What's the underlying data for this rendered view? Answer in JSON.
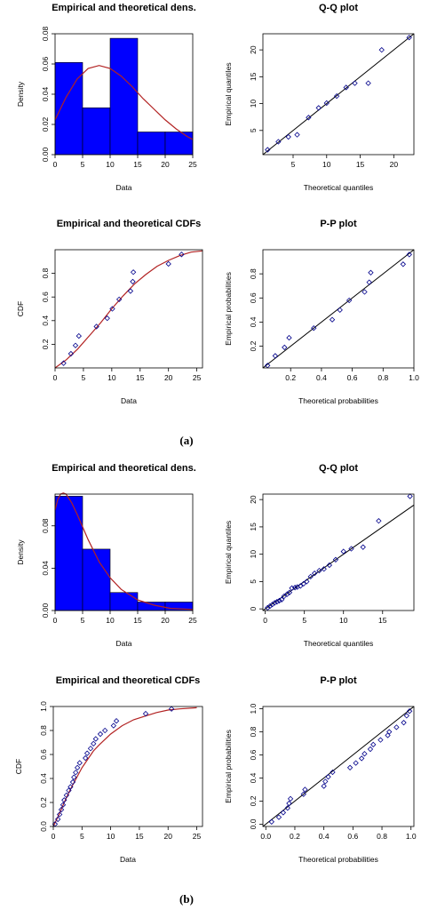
{
  "panel_labels": [
    "(a)",
    "(b)"
  ],
  "chart_data": [
    {
      "panel": "(a)",
      "type": "bar",
      "title": "Empirical and theoretical dens.",
      "xlabel": "Data",
      "ylabel": "Density",
      "xlim": [
        0,
        25
      ],
      "ylim": [
        0,
        0.08
      ],
      "xticks": [
        "0",
        "5",
        "10",
        "15",
        "20",
        "25"
      ],
      "yticks": [
        "0.00",
        "0.02",
        "0.04",
        "0.06",
        "0.08"
      ],
      "bins": [
        [
          0,
          5
        ],
        [
          5,
          10
        ],
        [
          10,
          15
        ],
        [
          15,
          20
        ],
        [
          20,
          25
        ]
      ],
      "values": [
        0.061,
        0.031,
        0.077,
        0.015,
        0.015
      ],
      "bar_color": "#0000ff",
      "curve_color": "#b22222",
      "curve": {
        "x": [
          0,
          2,
          4,
          6,
          8,
          10,
          12,
          14,
          16,
          18,
          20,
          22,
          24,
          25
        ],
        "y": [
          0.023,
          0.038,
          0.05,
          0.057,
          0.059,
          0.057,
          0.052,
          0.045,
          0.037,
          0.03,
          0.023,
          0.017,
          0.012,
          0.01
        ]
      }
    },
    {
      "panel": "(a)",
      "type": "scatter",
      "title": "Q-Q plot",
      "xlabel": "Theoretical quantiles",
      "ylabel": "Empirical quantiles",
      "xlim": [
        0.5,
        23
      ],
      "ylim": [
        0.5,
        23
      ],
      "xticks": [
        "5",
        "10",
        "15",
        "20"
      ],
      "yticks": [
        "5",
        "10",
        "15",
        "20"
      ],
      "x": [
        1.2,
        2.8,
        4.3,
        5.6,
        7.3,
        8.8,
        10.0,
        11.5,
        12.9,
        14.2,
        16.2,
        18.2,
        22.3
      ],
      "y": [
        1.4,
        2.9,
        3.8,
        4.2,
        7.4,
        9.2,
        10.1,
        11.4,
        13.0,
        13.8,
        13.8,
        20.0,
        22.3
      ],
      "line": [
        [
          0.5,
          0.5
        ],
        [
          23,
          23
        ]
      ],
      "point_color": "#00008b"
    },
    {
      "panel": "(a)",
      "type": "scatter",
      "title": "Empirical and theoretical CDFs",
      "xlabel": "Data",
      "ylabel": "CDF",
      "xlim": [
        0,
        26
      ],
      "ylim": [
        0,
        1
      ],
      "xticks": [
        "0",
        "5",
        "10",
        "15",
        "20",
        "25"
      ],
      "yticks": [
        "0.2",
        "0.4",
        "0.6",
        "0.8"
      ],
      "x": [
        1.5,
        2.8,
        3.6,
        4.2,
        7.3,
        9.2,
        10.1,
        11.3,
        13.3,
        13.7,
        13.8,
        20.0,
        22.3
      ],
      "y": [
        0.04,
        0.12,
        0.19,
        0.27,
        0.35,
        0.42,
        0.5,
        0.58,
        0.65,
        0.73,
        0.81,
        0.88,
        0.96
      ],
      "curve": {
        "x": [
          0,
          2,
          4,
          6,
          8,
          10,
          12,
          14,
          16,
          18,
          20,
          22,
          24,
          26
        ],
        "y": [
          0.0,
          0.07,
          0.16,
          0.27,
          0.38,
          0.5,
          0.61,
          0.71,
          0.79,
          0.86,
          0.91,
          0.95,
          0.98,
          0.99
        ]
      },
      "curve_color": "#b22222",
      "point_color": "#00008b"
    },
    {
      "panel": "(a)",
      "type": "scatter",
      "title": "P-P plot",
      "xlabel": "Theoretical probabilities",
      "ylabel": "Empirical probabilities",
      "xlim": [
        0.02,
        1
      ],
      "ylim": [
        0.02,
        1
      ],
      "xticks": [
        "0.2",
        "0.4",
        "0.6",
        "0.8",
        "1.0"
      ],
      "yticks": [
        "0.2",
        "0.4",
        "0.6",
        "0.8"
      ],
      "x": [
        0.05,
        0.1,
        0.16,
        0.19,
        0.35,
        0.47,
        0.52,
        0.58,
        0.68,
        0.71,
        0.72,
        0.93,
        0.97
      ],
      "y": [
        0.04,
        0.12,
        0.19,
        0.27,
        0.35,
        0.42,
        0.5,
        0.58,
        0.65,
        0.73,
        0.81,
        0.88,
        0.96
      ],
      "line": [
        [
          0.02,
          0.02
        ],
        [
          1,
          1
        ]
      ],
      "point_color": "#00008b"
    },
    {
      "panel": "(b)",
      "type": "bar",
      "title": "Empirical and theoretical dens.",
      "xlabel": "Data",
      "ylabel": "Density",
      "xlim": [
        0,
        25
      ],
      "ylim": [
        0,
        0.11
      ],
      "xticks": [
        "0",
        "5",
        "10",
        "15",
        "20",
        "25"
      ],
      "yticks": [
        "0.00",
        "0.04",
        "0.08"
      ],
      "bins": [
        [
          0,
          5
        ],
        [
          5,
          10
        ],
        [
          10,
          15
        ],
        [
          15,
          20
        ],
        [
          20,
          25
        ]
      ],
      "values": [
        0.108,
        0.058,
        0.017,
        0.008,
        0.008
      ],
      "bar_color": "#0000ff",
      "curve_color": "#b22222",
      "curve": {
        "x": [
          0,
          0.5,
          1,
          1.5,
          2,
          3,
          4,
          5,
          6,
          8,
          10,
          12,
          15,
          18,
          21,
          25
        ],
        "y": [
          0.095,
          0.105,
          0.11,
          0.111,
          0.11,
          0.102,
          0.091,
          0.079,
          0.067,
          0.046,
          0.031,
          0.02,
          0.01,
          0.005,
          0.002,
          0.001
        ]
      }
    },
    {
      "panel": "(b)",
      "type": "scatter",
      "title": "Q-Q plot",
      "xlabel": "Theoretical quantiles",
      "ylabel": "Empirical quantiles",
      "xlim": [
        -0.3,
        19
      ],
      "ylim": [
        -0.3,
        21
      ],
      "xticks": [
        "0",
        "5",
        "10",
        "15"
      ],
      "yticks": [
        "0",
        "5",
        "10",
        "15",
        "20"
      ],
      "x": [
        0.3,
        0.6,
        0.9,
        1.2,
        1.5,
        1.8,
        2.1,
        2.4,
        2.8,
        3.1,
        3.4,
        3.8,
        4.1,
        4.5,
        4.9,
        5.3,
        5.8,
        6.3,
        6.9,
        7.5,
        8.2,
        9.0,
        10.0,
        11.0,
        12.5,
        14.5,
        18.5
      ],
      "y": [
        0.2,
        0.5,
        0.8,
        1.1,
        1.3,
        1.5,
        1.7,
        2.3,
        2.7,
        3.0,
        3.8,
        3.9,
        4.0,
        4.2,
        4.6,
        5.0,
        5.9,
        6.5,
        7.0,
        7.3,
        8.0,
        9.0,
        10.5,
        11.0,
        11.3,
        16.1,
        20.6
      ],
      "line": [
        [
          -0.3,
          -0.3
        ],
        [
          19,
          19
        ]
      ],
      "point_color": "#00008b"
    },
    {
      "panel": "(b)",
      "type": "scatter",
      "title": "Empirical and theoretical CDFs",
      "xlabel": "Data",
      "ylabel": "CDF",
      "xlim": [
        0,
        26
      ],
      "ylim": [
        0,
        1
      ],
      "xticks": [
        "0",
        "5",
        "10",
        "15",
        "20",
        "25"
      ],
      "yticks": [
        "0.0",
        "0.2",
        "0.4",
        "0.6",
        "0.8",
        "1.0"
      ],
      "x": [
        0.3,
        0.8,
        1.1,
        1.4,
        1.7,
        1.9,
        2.3,
        2.7,
        3.0,
        3.4,
        3.6,
        3.9,
        4.2,
        4.6,
        5.6,
        5.9,
        6.5,
        7.0,
        7.4,
        8.2,
        9.0,
        10.5,
        11.0,
        16.1,
        20.6
      ],
      "y": [
        0.02,
        0.06,
        0.1,
        0.14,
        0.18,
        0.22,
        0.26,
        0.3,
        0.33,
        0.37,
        0.41,
        0.45,
        0.49,
        0.53,
        0.57,
        0.61,
        0.65,
        0.69,
        0.73,
        0.77,
        0.8,
        0.84,
        0.88,
        0.94,
        0.98
      ],
      "curve": {
        "x": [
          0,
          1,
          2,
          3,
          4,
          5,
          6,
          7,
          8,
          10,
          12,
          14,
          16,
          18,
          20,
          22,
          25
        ],
        "y": [
          0.0,
          0.1,
          0.21,
          0.31,
          0.4,
          0.49,
          0.56,
          0.63,
          0.68,
          0.77,
          0.84,
          0.89,
          0.92,
          0.95,
          0.97,
          0.98,
          0.99
        ]
      },
      "curve_color": "#b22222",
      "point_color": "#00008b"
    },
    {
      "panel": "(b)",
      "type": "scatter",
      "title": "P-P plot",
      "xlabel": "Theoretical probabilities",
      "ylabel": "Empirical probabilities",
      "xlim": [
        -0.02,
        1.02
      ],
      "ylim": [
        -0.02,
        1.02
      ],
      "xticks": [
        "0.0",
        "0.2",
        "0.4",
        "0.6",
        "0.8",
        "1.0"
      ],
      "yticks": [
        "0.0",
        "0.2",
        "0.4",
        "0.6",
        "0.8",
        "1.0"
      ],
      "x": [
        0.04,
        0.09,
        0.12,
        0.15,
        0.16,
        0.17,
        0.26,
        0.27,
        0.4,
        0.41,
        0.43,
        0.46,
        0.58,
        0.62,
        0.66,
        0.68,
        0.72,
        0.74,
        0.79,
        0.84,
        0.85,
        0.9,
        0.95,
        0.97,
        0.99
      ],
      "y": [
        0.02,
        0.06,
        0.1,
        0.14,
        0.18,
        0.22,
        0.26,
        0.3,
        0.33,
        0.37,
        0.41,
        0.45,
        0.49,
        0.53,
        0.57,
        0.61,
        0.65,
        0.69,
        0.73,
        0.77,
        0.8,
        0.84,
        0.88,
        0.94,
        0.98
      ],
      "line": [
        [
          -0.02,
          -0.02
        ],
        [
          1.02,
          1.02
        ]
      ],
      "point_color": "#00008b"
    }
  ]
}
